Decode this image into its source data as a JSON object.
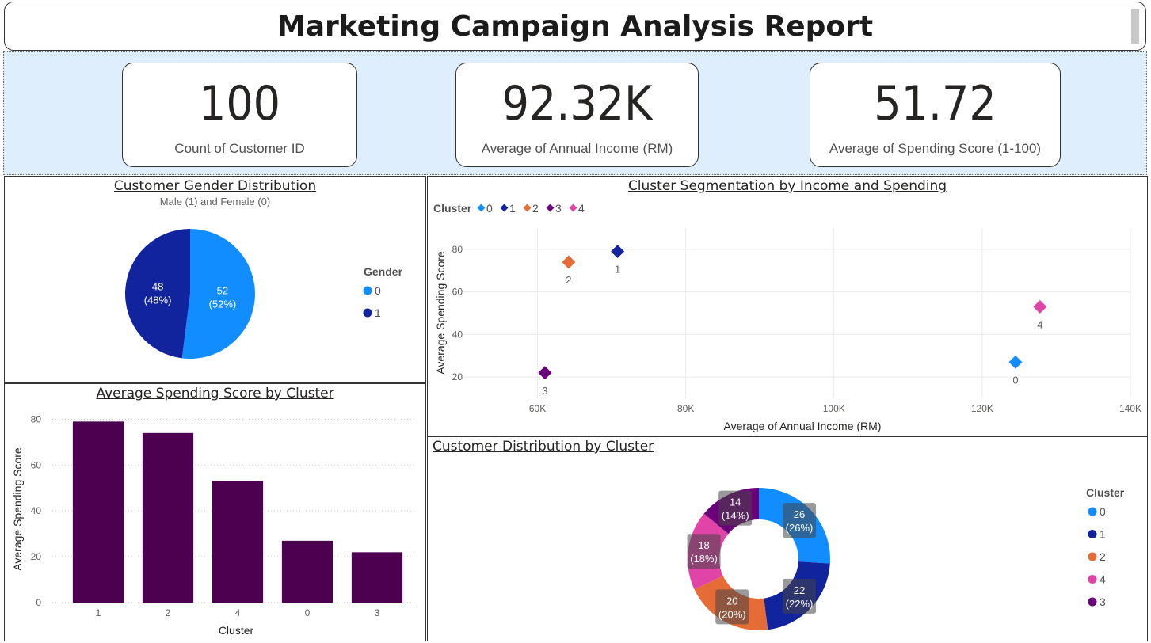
{
  "title": "Marketing Campaign Analysis Report",
  "kpis": [
    {
      "value": "100",
      "label": "Count of Customer ID"
    },
    {
      "value": "92.32K",
      "label": "Average of Annual Income (RM)"
    },
    {
      "value": "51.72",
      "label": "Average of Spending Score (1-100)"
    }
  ],
  "gender_chart": {
    "title": "Customer Gender Distribution",
    "subtitle": "Male (1) and Female (0)",
    "legend_title": "Gender",
    "colors": {
      "0": "#118dff",
      "1": "#12239e"
    },
    "chart_data": {
      "type": "pie",
      "slices": [
        {
          "category": "0",
          "value": 52,
          "label": "52",
          "percent": "(52%)"
        },
        {
          "category": "1",
          "value": 48,
          "label": "48",
          "percent": "(48%)"
        }
      ],
      "legend": [
        "0",
        "1"
      ]
    }
  },
  "cluster_scatter": {
    "title": "Cluster Segmentation by Income and Spending",
    "legend_title": "Cluster",
    "legend": [
      "0",
      "1",
      "2",
      "3",
      "4"
    ],
    "colors": {
      "0": "#118dff",
      "1": "#12239e",
      "2": "#e66c37",
      "3": "#6b007b",
      "4": "#e044a7"
    },
    "chart_data": {
      "type": "scatter",
      "xlabel": "Average of Annual Income (RM)",
      "ylabel": "Average Spending Score",
      "xlim": [
        50000,
        140000
      ],
      "ylim": [
        10,
        90
      ],
      "xticks": [
        "60K",
        "80K",
        "100K",
        "120K",
        "140K"
      ],
      "xtick_values": [
        60000,
        80000,
        100000,
        120000,
        140000
      ],
      "yticks": [
        20,
        40,
        60,
        80
      ],
      "points": [
        {
          "cluster": "0",
          "x": 124500,
          "y": 27
        },
        {
          "cluster": "1",
          "x": 70800,
          "y": 79
        },
        {
          "cluster": "2",
          "x": 64200,
          "y": 74
        },
        {
          "cluster": "3",
          "x": 61000,
          "y": 22
        },
        {
          "cluster": "4",
          "x": 127800,
          "y": 53
        }
      ]
    }
  },
  "spending_bar": {
    "title": "Average Spending Score by Cluster",
    "color": "#4b0050",
    "chart_data": {
      "type": "bar",
      "categories": [
        "1",
        "2",
        "4",
        "0",
        "3"
      ],
      "values": [
        79,
        74,
        53,
        27,
        22
      ],
      "xlabel": "Cluster",
      "ylabel": "Average Spending Score",
      "ylim": [
        0,
        85
      ],
      "yticks": [
        0,
        20,
        40,
        60,
        80
      ]
    }
  },
  "cluster_donut": {
    "title": "Customer Distribution by Cluster",
    "legend_title": "Cluster",
    "legend": [
      "0",
      "1",
      "2",
      "4",
      "3"
    ],
    "colors": {
      "0": "#118dff",
      "1": "#12239e",
      "2": "#e66c37",
      "3": "#6b007b",
      "4": "#e044a7"
    },
    "chart_data": {
      "type": "pie",
      "slices": [
        {
          "category": "0",
          "value": 26,
          "label": "26",
          "percent": "(26%)"
        },
        {
          "category": "1",
          "value": 22,
          "label": "22",
          "percent": "(22%)"
        },
        {
          "category": "2",
          "value": 20,
          "label": "20",
          "percent": "(20%)"
        },
        {
          "category": "4",
          "value": 18,
          "label": "18",
          "percent": "(18%)"
        },
        {
          "category": "3",
          "value": 14,
          "label": "14",
          "percent": "(14%)"
        }
      ]
    }
  }
}
